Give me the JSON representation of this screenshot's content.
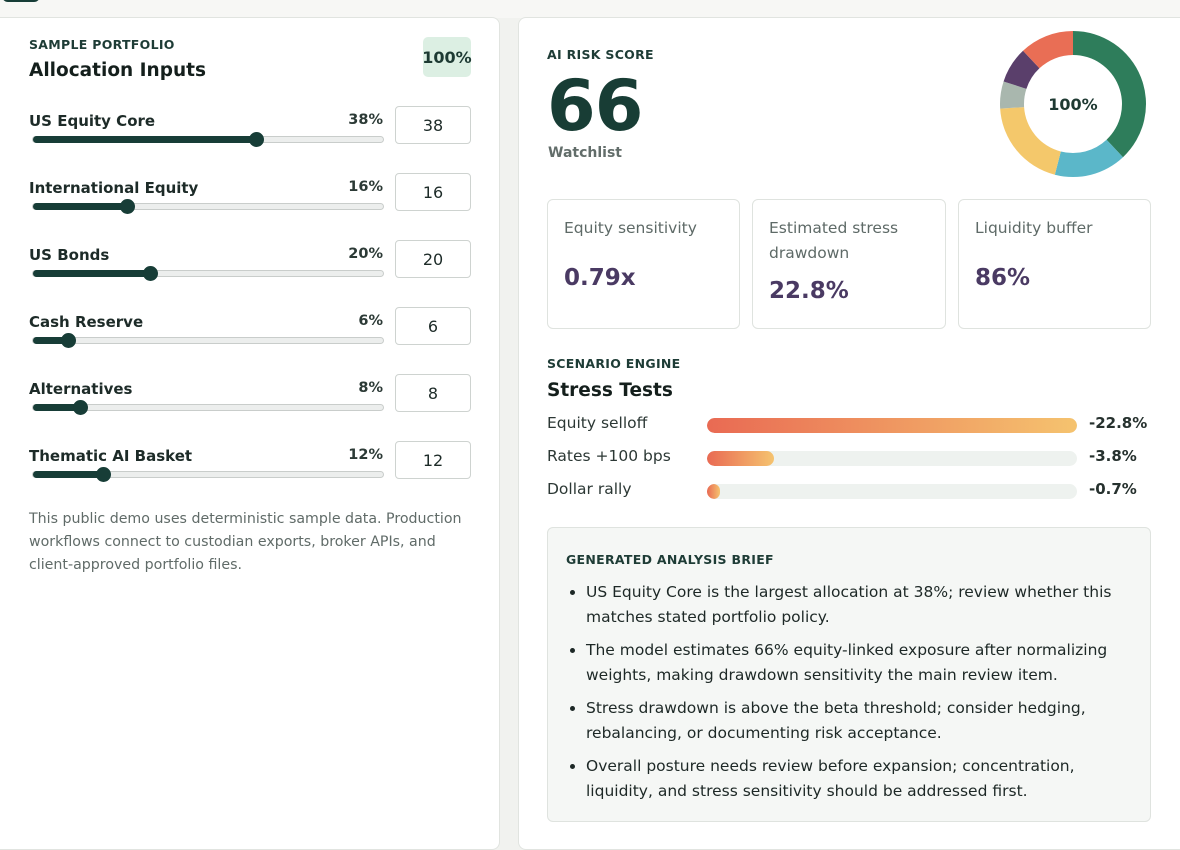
{
  "portfolio": {
    "eyebrow": "SAMPLE PORTFOLIO",
    "title": "Allocation Inputs",
    "total": "100%",
    "items": [
      {
        "label": "US Equity Core",
        "pct_label": "38%",
        "value": "38",
        "fraction": 0.38
      },
      {
        "label": "International Equity",
        "pct_label": "16%",
        "value": "16",
        "fraction": 0.16
      },
      {
        "label": "US Bonds",
        "pct_label": "20%",
        "value": "20",
        "fraction": 0.2
      },
      {
        "label": "Cash Reserve",
        "pct_label": "6%",
        "value": "6",
        "fraction": 0.06
      },
      {
        "label": "Alternatives",
        "pct_label": "8%",
        "value": "8",
        "fraction": 0.08
      },
      {
        "label": "Thematic AI Basket",
        "pct_label": "12%",
        "value": "12",
        "fraction": 0.12
      }
    ],
    "note": "This public demo uses deterministic sample data. Production workflows connect to custodian exports, broker APIs, and client-approved portfolio files."
  },
  "risk": {
    "eyebrow": "AI RISK SCORE",
    "score": "66",
    "label": "Watchlist",
    "donut_center": "100%",
    "donut_colors": [
      "#2e7d5b",
      "#5bb7c9",
      "#f4c86b",
      "#a9b7ae",
      "#5a3f6b",
      "#e96e55"
    ]
  },
  "metrics": [
    {
      "label": "Equity sensitivity",
      "value": "0.79x"
    },
    {
      "label": "Estimated stress drawdown",
      "value": "22.8%"
    },
    {
      "label": "Liquidity buffer",
      "value": "86%"
    }
  ],
  "stress": {
    "eyebrow": "SCENARIO ENGINE",
    "title": "Stress Tests",
    "rows": [
      {
        "label": "Equity selloff",
        "value": "-22.8%",
        "fraction": 1.0
      },
      {
        "label": "Rates +100 bps",
        "value": "-3.8%",
        "fraction": 0.18
      },
      {
        "label": "Dollar rally",
        "value": "-0.7%",
        "fraction": 0.035
      }
    ]
  },
  "brief": {
    "title": "GENERATED ANALYSIS BRIEF",
    "items": [
      "US Equity Core is the largest allocation at 38%; review whether this matches stated portfolio policy.",
      "The model estimates 66% equity-linked exposure after normalizing weights, making drawdown sensitivity the main review item.",
      "Stress drawdown is above the beta threshold; consider hedging, rebalancing, or documenting risk acceptance.",
      "Overall posture needs review before expansion; concentration, liquidity, and stress sensitivity should be addressed first."
    ]
  }
}
